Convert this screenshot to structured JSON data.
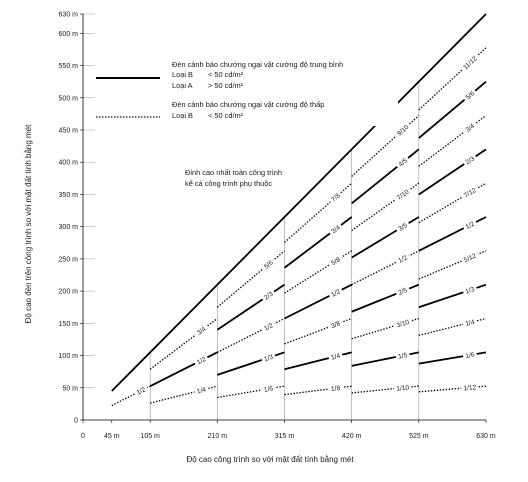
{
  "chart_data": {
    "type": "line",
    "xlabel": "Độ cao công trình so với mặt đất tính bằng mét",
    "ylabel": "Độ cao đèn trên công trình so với mặt đất tính bằng mét",
    "x_ticks": [
      "0",
      "45 m",
      "105 m",
      "210 m",
      "315 m",
      "420 m",
      "525 m",
      "630 m"
    ],
    "x_tick_values": [
      0,
      45,
      105,
      210,
      315,
      420,
      525,
      630
    ],
    "y_ticks": [
      "0",
      "50 m",
      "100 m",
      "150 m",
      "200 m",
      "250 m",
      "300 m",
      "350 m",
      "400 m",
      "450 m",
      "500 m",
      "550 m",
      "600 m",
      "630 m"
    ],
    "y_tick_values": [
      0,
      50,
      100,
      150,
      200,
      250,
      300,
      350,
      400,
      450,
      500,
      550,
      600,
      630
    ],
    "xlim": [
      0,
      630
    ],
    "ylim": [
      0,
      630
    ],
    "grid": "vertical lines at 105, 210, 315, 420, 525",
    "legend": {
      "medium_title": "Đèn cảnh báo chướng ngại vật cường độ trung bình",
      "medium_b": "Loại B",
      "medium_b_value": "< 50 cd/m²",
      "medium_a": "Loại A",
      "medium_a_value": "> 50 cd/m²",
      "low_title": "Đèn cảnh báo chướng ngại vật cường độ thấp",
      "low_b": "Loại B",
      "low_b_value": "< 50 cd/m²"
    },
    "annotation": {
      "line1": "Đỉnh cao nhất toàn công trình",
      "line2": "kể cả công trình phụ thuộc"
    },
    "series": [
      {
        "style": "solid",
        "points": [
          [
            45,
            45
          ],
          [
            630,
            630
          ]
        ]
      },
      {
        "style": "dotted",
        "points": [
          [
            45,
            22.5
          ],
          [
            105,
            52.5
          ]
        ],
        "label": "1/2"
      },
      {
        "style": "dotted",
        "points": [
          [
            105,
            26.25
          ],
          [
            210,
            52.5
          ]
        ],
        "label": "1/4"
      },
      {
        "style": "solid",
        "points": [
          [
            105,
            52.5
          ],
          [
            210,
            105
          ]
        ],
        "label": "1/2"
      },
      {
        "style": "dotted",
        "points": [
          [
            105,
            78.75
          ],
          [
            210,
            157.5
          ]
        ],
        "label": "3/4"
      },
      {
        "style": "dotted",
        "points": [
          [
            210,
            35
          ],
          [
            315,
            52.5
          ]
        ],
        "label": "1/6"
      },
      {
        "style": "solid",
        "points": [
          [
            210,
            70
          ],
          [
            315,
            105
          ]
        ],
        "label": "1/3"
      },
      {
        "style": "dotted",
        "points": [
          [
            210,
            105
          ],
          [
            315,
            157.5
          ]
        ],
        "label": "1/2"
      },
      {
        "style": "solid",
        "points": [
          [
            210,
            140
          ],
          [
            315,
            210
          ]
        ],
        "label": "2/3"
      },
      {
        "style": "dotted",
        "points": [
          [
            210,
            175
          ],
          [
            315,
            262.5
          ]
        ],
        "label": "5/6"
      },
      {
        "style": "dotted",
        "points": [
          [
            315,
            39.375
          ],
          [
            420,
            52.5
          ]
        ],
        "label": "1/8"
      },
      {
        "style": "solid",
        "points": [
          [
            315,
            78.75
          ],
          [
            420,
            105
          ]
        ],
        "label": "1/4"
      },
      {
        "style": "dotted",
        "points": [
          [
            315,
            118.125
          ],
          [
            420,
            157.5
          ]
        ],
        "label": "3/8"
      },
      {
        "style": "solid",
        "points": [
          [
            315,
            157.5
          ],
          [
            420,
            210
          ]
        ],
        "label": "1/2"
      },
      {
        "style": "dotted",
        "points": [
          [
            315,
            196.875
          ],
          [
            420,
            262.5
          ]
        ],
        "label": "5/8"
      },
      {
        "style": "solid",
        "points": [
          [
            315,
            236.25
          ],
          [
            420,
            315
          ]
        ],
        "label": "3/4"
      },
      {
        "style": "dotted",
        "points": [
          [
            315,
            275.625
          ],
          [
            420,
            367.5
          ]
        ],
        "label": "7/8"
      },
      {
        "style": "dotted",
        "points": [
          [
            420,
            42
          ],
          [
            525,
            52.5
          ]
        ],
        "label": "1/10"
      },
      {
        "style": "solid",
        "points": [
          [
            420,
            84
          ],
          [
            525,
            105
          ]
        ],
        "label": "1/5"
      },
      {
        "style": "dotted",
        "points": [
          [
            420,
            126
          ],
          [
            525,
            157.5
          ]
        ],
        "label": "3/10"
      },
      {
        "style": "solid",
        "points": [
          [
            420,
            168
          ],
          [
            525,
            210
          ]
        ],
        "label": "2/5"
      },
      {
        "style": "dotted",
        "points": [
          [
            420,
            210
          ],
          [
            525,
            262.5
          ]
        ],
        "label": "1/2"
      },
      {
        "style": "solid",
        "points": [
          [
            420,
            252
          ],
          [
            525,
            315
          ]
        ],
        "label": "3/5"
      },
      {
        "style": "dotted",
        "points": [
          [
            420,
            294
          ],
          [
            525,
            367.5
          ]
        ],
        "label": "7/10"
      },
      {
        "style": "solid",
        "points": [
          [
            420,
            336
          ],
          [
            525,
            420
          ]
        ],
        "label": "4/5"
      },
      {
        "style": "dotted",
        "points": [
          [
            420,
            378
          ],
          [
            525,
            472.5
          ]
        ],
        "label": "9/10"
      },
      {
        "style": "dotted",
        "points": [
          [
            525,
            43.75
          ],
          [
            630,
            52.5
          ]
        ],
        "label": "1/12"
      },
      {
        "style": "solid",
        "points": [
          [
            525,
            87.5
          ],
          [
            630,
            105
          ]
        ],
        "label": "1/6"
      },
      {
        "style": "dotted",
        "points": [
          [
            525,
            131.25
          ],
          [
            630,
            157.5
          ]
        ],
        "label": "1/4"
      },
      {
        "style": "solid",
        "points": [
          [
            525,
            175
          ],
          [
            630,
            210
          ]
        ],
        "label": "1/3"
      },
      {
        "style": "dotted",
        "points": [
          [
            525,
            218.75
          ],
          [
            630,
            262.5
          ]
        ],
        "label": "5/12"
      },
      {
        "style": "solid",
        "points": [
          [
            525,
            262.5
          ],
          [
            630,
            315
          ]
        ],
        "label": "1/2"
      },
      {
        "style": "dotted",
        "points": [
          [
            525,
            306.25
          ],
          [
            630,
            367.5
          ]
        ],
        "label": "7/12"
      },
      {
        "style": "solid",
        "points": [
          [
            525,
            350
          ],
          [
            630,
            420
          ]
        ],
        "label": "2/3"
      },
      {
        "style": "dotted",
        "points": [
          [
            525,
            393.75
          ],
          [
            630,
            472.5
          ]
        ],
        "label": "3/4"
      },
      {
        "style": "solid",
        "points": [
          [
            525,
            437.5
          ],
          [
            630,
            525
          ]
        ],
        "label": "5/6"
      },
      {
        "style": "dotted",
        "points": [
          [
            525,
            481.25
          ],
          [
            630,
            577.5
          ]
        ],
        "label": "11/12"
      }
    ]
  }
}
